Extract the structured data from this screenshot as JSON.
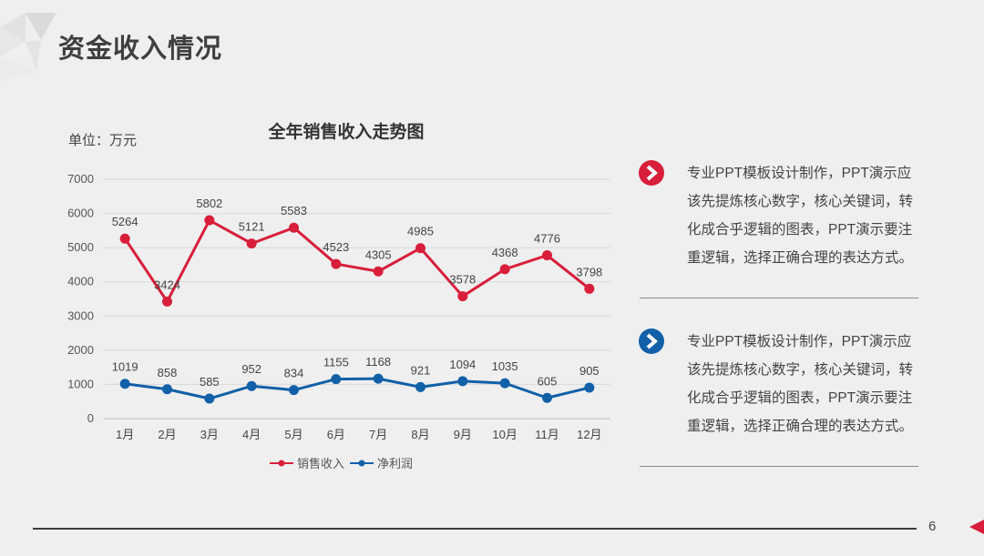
{
  "page": {
    "title": "资金收入情况",
    "page_number": "6",
    "accent_red": "#d81e3a",
    "accent_blue": "#1160a8"
  },
  "chart_data": {
    "type": "line",
    "title": "全年销售收入走势图",
    "unit_label": "单位：万元",
    "categories": [
      "1月",
      "2月",
      "3月",
      "4月",
      "5月",
      "6月",
      "7月",
      "8月",
      "9月",
      "10月",
      "11月",
      "12月"
    ],
    "ylim": [
      0,
      7000
    ],
    "yticks": [
      0,
      1000,
      2000,
      3000,
      4000,
      5000,
      6000,
      7000
    ],
    "grid": true,
    "legend_position": "bottom",
    "series": [
      {
        "name": "销售收入",
        "color": "#d81e3a",
        "values": [
          5264,
          3424,
          5802,
          5121,
          5583,
          4523,
          4305,
          4985,
          3578,
          4368,
          4776,
          3798
        ]
      },
      {
        "name": "净利润",
        "color": "#1160a8",
        "values": [
          1019,
          858,
          585,
          952,
          834,
          1155,
          1168,
          921,
          1094,
          1035,
          605,
          905
        ]
      }
    ]
  },
  "notes": [
    {
      "icon": "chevron-right-icon",
      "color": "#d81e3a",
      "text": "专业PPT模板设计制作，PPT演示应该先提炼核心数字，核心关键词，转化成合乎逻辑的图表，PPT演示要注重逻辑，选择正确合理的表达方式。"
    },
    {
      "icon": "chevron-right-icon",
      "color": "#1160a8",
      "text": "专业PPT模板设计制作，PPT演示应该先提炼核心数字，核心关键词，转化成合乎逻辑的图表，PPT演示要注重逻辑，选择正确合理的表达方式。"
    }
  ]
}
